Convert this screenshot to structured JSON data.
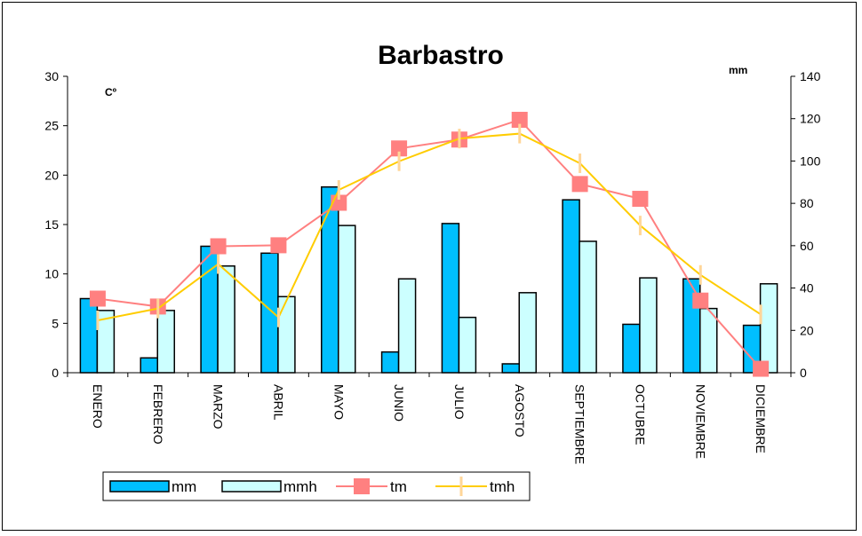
{
  "chart_data": {
    "type": "bar",
    "title": "Barbastro",
    "y_left_label": "Cº",
    "y_right_label": "mm",
    "y_left_lim": [
      0,
      30
    ],
    "y_left_ticks": [
      0,
      5,
      10,
      15,
      20,
      25,
      30
    ],
    "y_right_lim": [
      0,
      140
    ],
    "y_right_ticks": [
      0,
      20,
      40,
      60,
      80,
      100,
      120,
      140
    ],
    "categories": [
      "ENERO",
      "FEBRERO",
      "MARZO",
      "ABRIL",
      "MAYO",
      "JUNIO",
      "JULIO",
      "AGOSTO",
      "SEPTIEMBRE",
      "OCTUBRE",
      "NOVIEMBRE",
      "DICIEMBRE"
    ],
    "grid": false,
    "legend_position": "bottom-left",
    "series": [
      {
        "name": "mm",
        "kind": "bar",
        "axis": "left",
        "color": "#00bfff",
        "values": [
          7.5,
          1.5,
          12.8,
          12.1,
          18.8,
          2.1,
          15.1,
          0.9,
          17.5,
          4.9,
          9.5,
          4.8
        ]
      },
      {
        "name": "mmh",
        "kind": "bar",
        "axis": "left",
        "color": "#ccffff",
        "values": [
          6.3,
          6.3,
          10.8,
          7.7,
          14.9,
          9.5,
          5.6,
          8.1,
          13.3,
          9.6,
          6.5,
          9.0
        ]
      },
      {
        "name": "tm",
        "kind": "line",
        "axis": "left",
        "color": "#ff8080",
        "marker": "square",
        "values": [
          7.5,
          6.7,
          12.8,
          12.9,
          17.2,
          22.7,
          23.6,
          25.6,
          19.1,
          17.6,
          7.3,
          0.4
        ]
      },
      {
        "name": "tmh",
        "kind": "line",
        "axis": "left",
        "color": "#ffcc00",
        "marker": "plus",
        "values": [
          5.3,
          6.5,
          11.0,
          5.6,
          18.5,
          21.4,
          23.7,
          24.2,
          21.2,
          14.9,
          9.9,
          5.9
        ]
      }
    ]
  }
}
